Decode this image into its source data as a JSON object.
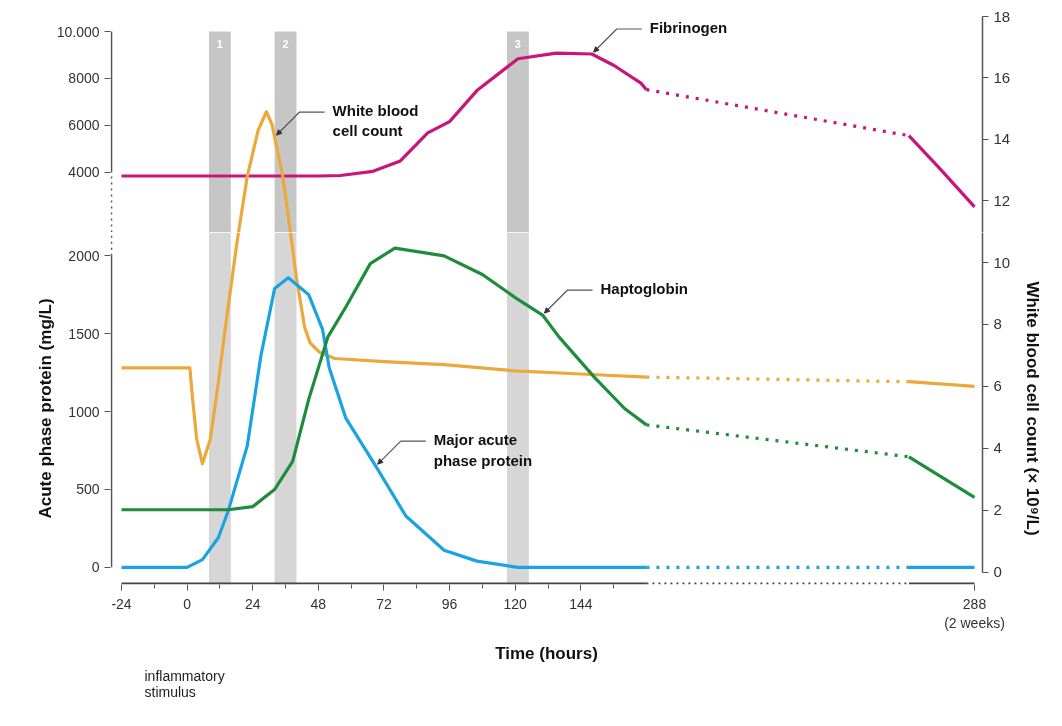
{
  "chart_data": [
    {
      "type": "line",
      "tick_labels": "y",
      "xlim": [
        -24,
        288
      ],
      "ylim": [
        1430,
        10640
      ],
      "yticks": [
        4000,
        6000,
        8000,
        {
          "value": 10000,
          "label": "10.000"
        }
      ],
      "y2lim": [
        10.97,
        18
      ],
      "y2ticks": [
        12,
        14,
        16,
        18
      ],
      "series": [
        {
          "color": "#c8157a",
          "x": [
            -24,
            0,
            24,
            48,
            56,
            68,
            78,
            88,
            96,
            106,
            121,
            135,
            148,
            156,
            166,
            168,
            264,
            275,
            288
          ],
          "values": [
            3840,
            3840,
            3840,
            3840,
            3860,
            4040,
            4480,
            5680,
            6160,
            7480,
            8840,
            9080,
            9040,
            8560,
            7800,
            7520,
            5560,
            4200,
            2520
          ]
        },
        {
          "color": "#eaa93a",
          "axis": "y2",
          "x": [
            18.8,
            22,
            26,
            29,
            31,
            35,
            37.8
          ],
          "values": [
            10.97,
            12.8,
            14.3,
            14.9,
            14.5,
            12.8,
            10.97
          ]
        }
      ],
      "bands": [
        {
          "axis": "x",
          "from": 8,
          "to": 16,
          "label": "1",
          "color": "#c6c6c6"
        },
        {
          "axis": "x",
          "from": 32,
          "to": 40,
          "label": "2",
          "color": "#c6c6c6"
        },
        {
          "axis": "x",
          "from": 117,
          "to": 125,
          "label": "3",
          "color": "#c6c6c6"
        }
      ],
      "annotations": [
        {
          "text": "Fibrinogen",
          "x": 148,
          "y": 9040
        },
        {
          "text": "White blood cell count",
          "x": 32,
          "y": 5500
        }
      ]
    },
    {
      "type": "line",
      "xlabel": "Time (hours)",
      "ylabel": "Acute phase protein (mg/L)",
      "y2label": "White blood cell count (× 10⁹/L)",
      "xlim": [
        -24,
        288
      ],
      "xticks": [
        -24,
        0,
        24,
        48,
        72,
        96,
        120,
        144,
        {
          "value": 288,
          "label": "288\n(2 weeks)"
        }
      ],
      "ylim": [
        -110,
        2150
      ],
      "yticks": [
        0,
        500,
        1000,
        1500,
        2000
      ],
      "y2lim": [
        -0.4,
        10.97
      ],
      "y2ticks": [
        0,
        2,
        4,
        6,
        8,
        10
      ],
      "series": [
        {
          "color": "#eaa93a",
          "axis": "y2",
          "x": [
            -24,
            0,
            1,
            2,
            3.5,
            5.6,
            8.5,
            11.4,
            14,
            18,
            18.8,
            30,
            37.8,
            40,
            43,
            45,
            48.5,
            54,
            72,
            94,
            120,
            144,
            168,
            264,
            288
          ],
          "values": [
            6.6,
            6.6,
            6.6,
            5.6,
            4.3,
            3.5,
            4.3,
            6.1,
            7.9,
            10.5,
            10.97,
            null,
            10.97,
            9.5,
            7.9,
            7.4,
            7.1,
            6.9,
            6.8,
            6.7,
            6.5,
            6.4,
            6.3,
            6.15,
            6.0
          ]
        },
        {
          "color": "#1aa3e0",
          "x": [
            -24,
            0,
            5.6,
            11.4,
            15,
            22,
            27,
            32,
            37,
            44.5,
            49.5,
            52,
            58,
            69,
            80,
            94,
            106,
            121,
            144,
            168,
            264,
            288
          ],
          "values": [
            0,
            0,
            50,
            190,
            360,
            780,
            1360,
            1790,
            1860,
            1750,
            1530,
            1280,
            960,
            650,
            330,
            110,
            40,
            0,
            0,
            0,
            0,
            0
          ]
        },
        {
          "color": "#1e8c3c",
          "x": [
            -24,
            0,
            15,
            24,
            32,
            38.6,
            44.5,
            51.5,
            58,
            67,
            76,
            94,
            108,
            121,
            130,
            136,
            149,
            160,
            168,
            264,
            288
          ],
          "values": [
            370,
            370,
            370,
            390,
            500,
            680,
            1080,
            1480,
            1670,
            1950,
            2050,
            2000,
            1880,
            1720,
            1620,
            1480,
            1220,
            1020,
            915,
            710,
            450
          ]
        }
      ],
      "bands": [
        {
          "axis": "x",
          "from": 8,
          "to": 16,
          "color": "#d6d6d6"
        },
        {
          "axis": "x",
          "from": 32,
          "to": 40,
          "color": "#d6d6d6"
        },
        {
          "axis": "x",
          "from": 117,
          "to": 125,
          "color": "#d6d6d6"
        }
      ],
      "annotations": [
        {
          "text": "Haptoglobin",
          "x": 130,
          "y": 1620
        },
        {
          "text": "Major acute phase protein",
          "x": 69,
          "y": 650
        },
        "inflammatory stimulus"
      ]
    }
  ]
}
